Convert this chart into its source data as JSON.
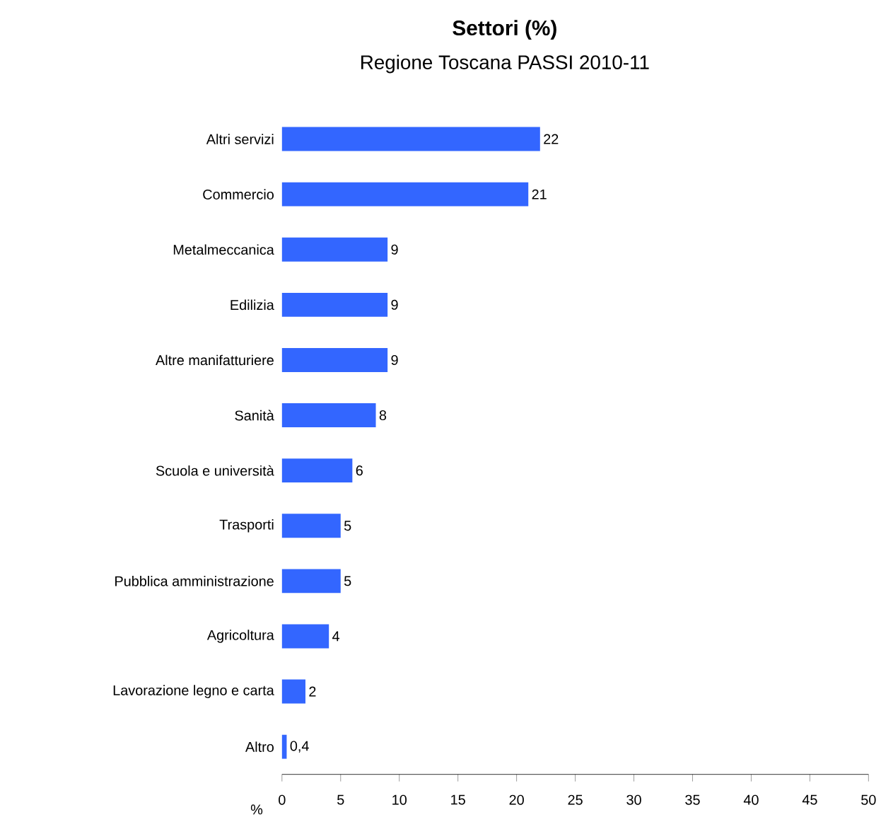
{
  "chart_data": {
    "type": "bar",
    "orientation": "horizontal",
    "title": "Settori (%)",
    "subtitle": "Regione Toscana PASSI 2010-11",
    "xlabel": "%",
    "categories": [
      "Altri servizi",
      "Commercio",
      "Metalmeccanica",
      "Edilizia",
      "Altre manifatturiere",
      "Sanità",
      "Scuola e università",
      "Trasporti",
      "Pubblica amministrazione",
      "Agricoltura",
      "Lavorazione legno e carta",
      "Altro"
    ],
    "values": [
      22,
      21,
      9,
      9,
      9,
      8,
      6,
      5,
      5,
      4,
      2,
      0.4
    ],
    "value_labels": [
      "22",
      "21",
      "9",
      "9",
      "9",
      "8",
      "6",
      "5",
      "5",
      "4",
      "2",
      "0,4"
    ],
    "color": "#3366ff",
    "xlim": [
      0,
      50
    ],
    "xticks": [
      0,
      5,
      10,
      15,
      20,
      25,
      30,
      35,
      40,
      45,
      50
    ]
  }
}
